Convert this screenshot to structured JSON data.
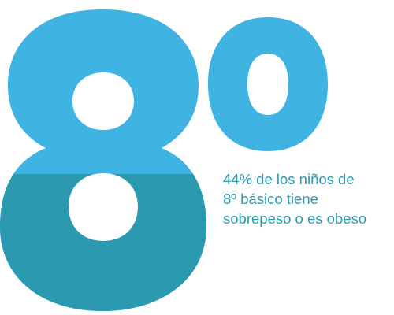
{
  "graphic": {
    "big_text": "8º",
    "top_color": "#3fb3e2",
    "bottom_color": "#2b9ab0",
    "fill_fraction": 0.44
  },
  "caption": {
    "lines": [
      "44% de los niños de",
      "8º básico tiene",
      "sobrepeso o es obeso"
    ],
    "color": "#2b9ab0"
  }
}
